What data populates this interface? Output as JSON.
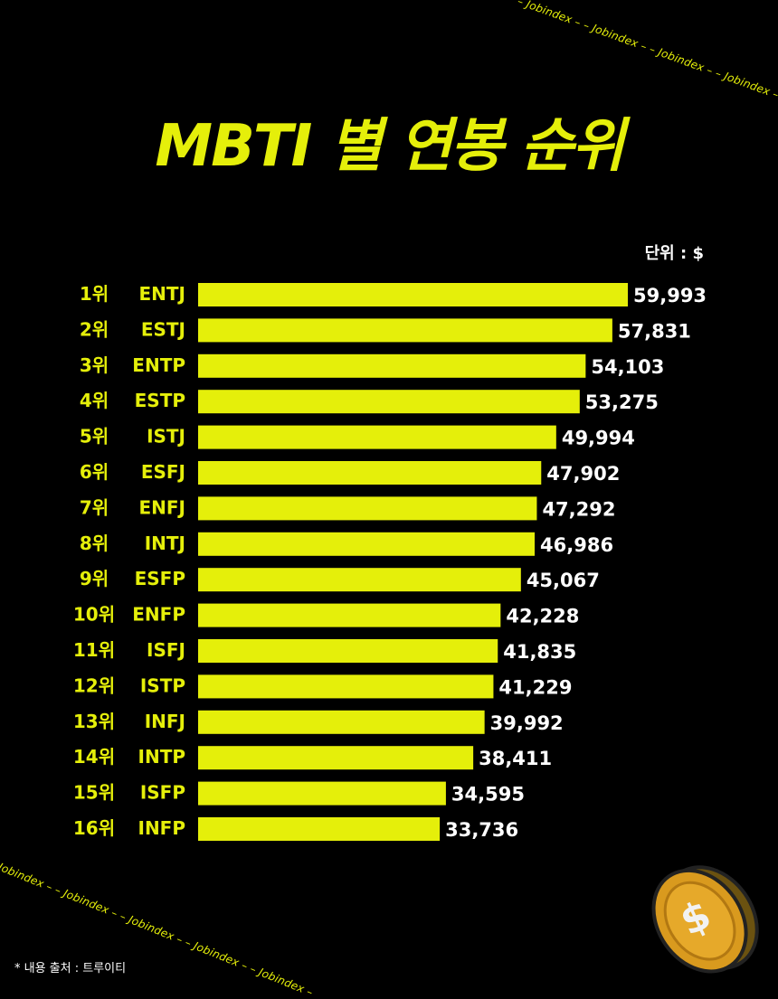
{
  "title": "MBTI 별 연봉 순위",
  "unit_label": "단위 : $",
  "footnote": "* 내용 출처 : 트루이티",
  "watermark_text": "– Jobindex –",
  "colors": {
    "accent": "#e5ef0a",
    "background": "#000000",
    "text": "#ffffff"
  },
  "icons": {
    "coin": "dollar-coin-icon"
  },
  "chart_data": {
    "type": "bar",
    "orientation": "horizontal",
    "title": "MBTI 별 연봉 순위",
    "unit": "$",
    "ranks": [
      "1위",
      "2위",
      "3위",
      "4위",
      "5위",
      "6위",
      "7위",
      "8위",
      "9위",
      "10위",
      "11위",
      "12위",
      "13위",
      "14위",
      "15위",
      "16위"
    ],
    "categories": [
      "ENTJ",
      "ESTJ",
      "ENTP",
      "ESTP",
      "ISTJ",
      "ESFJ",
      "ENFJ",
      "INTJ",
      "ESFP",
      "ENFP",
      "ISFJ",
      "ISTP",
      "INFJ",
      "INTP",
      "ISFP",
      "INFP"
    ],
    "values": [
      59993,
      57831,
      54103,
      53275,
      49994,
      47902,
      47292,
      46986,
      45067,
      42228,
      41835,
      41229,
      39992,
      38411,
      34595,
      33736
    ],
    "value_labels": [
      "59,993",
      "57,831",
      "54,103",
      "53,275",
      "49,994",
      "47,902",
      "47,292",
      "46,986",
      "45,067",
      "42,228",
      "41,835",
      "41,229",
      "39,992",
      "38,411",
      "34,595",
      "33,736"
    ],
    "grid": false,
    "legend": "none"
  }
}
